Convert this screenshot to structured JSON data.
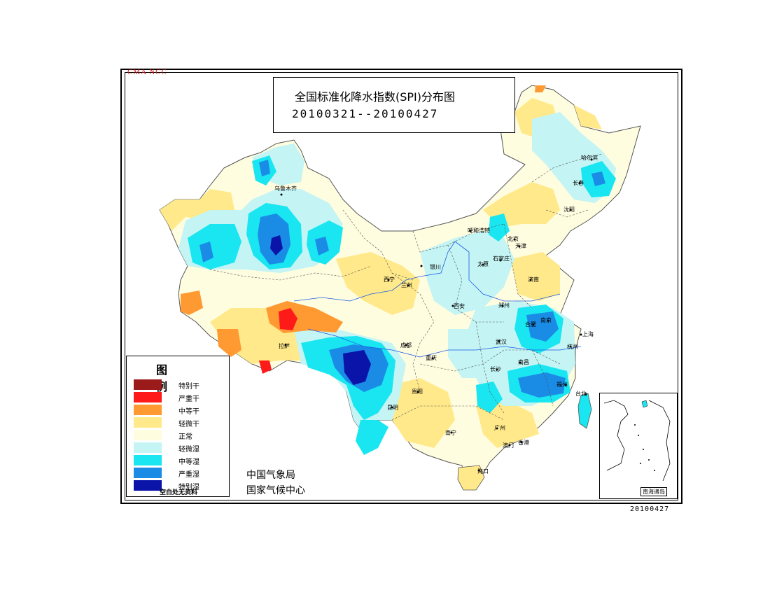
{
  "header": {
    "watermark": "CMA NCC",
    "title": "全国标准化降水指数(SPI)分布图",
    "period": "20100321--20100427"
  },
  "legend": {
    "title": "图 例",
    "items": [
      {
        "label": "特别干",
        "color": "#9b1b1b"
      },
      {
        "label": "严重干",
        "color": "#ff1a1a"
      },
      {
        "label": "中等干",
        "color": "#ff9a33"
      },
      {
        "label": "轻微干",
        "color": "#ffe98a"
      },
      {
        "label": "正常",
        "color": "#fffde0"
      },
      {
        "label": "轻微湿",
        "color": "#c4f4f4"
      },
      {
        "label": "中等湿",
        "color": "#19e6f0"
      },
      {
        "label": "严重湿",
        "color": "#1a8ce6"
      },
      {
        "label": "特别湿",
        "color": "#0a14a8"
      }
    ],
    "note": "空白处无资料"
  },
  "agency": {
    "line1": "中国气象局",
    "line2": "国家气候中心"
  },
  "inset": {
    "label": "南海诸岛"
  },
  "footer": {
    "date_stamp": "20100427"
  },
  "cities": [
    "乌鲁木齐",
    "哈尔滨",
    "长春",
    "沈阳",
    "呼和浩特",
    "北京",
    "天津",
    "太原",
    "石家庄",
    "银川",
    "西宁",
    "兰州",
    "济南",
    "西安",
    "郑州",
    "拉萨",
    "成都",
    "合肥",
    "南京",
    "上海",
    "武汉",
    "杭州",
    "重庆",
    "长沙",
    "南昌",
    "福州",
    "贵阳",
    "昆明",
    "台北",
    "南宁",
    "广州",
    "香港",
    "澳门",
    "海口"
  ]
}
